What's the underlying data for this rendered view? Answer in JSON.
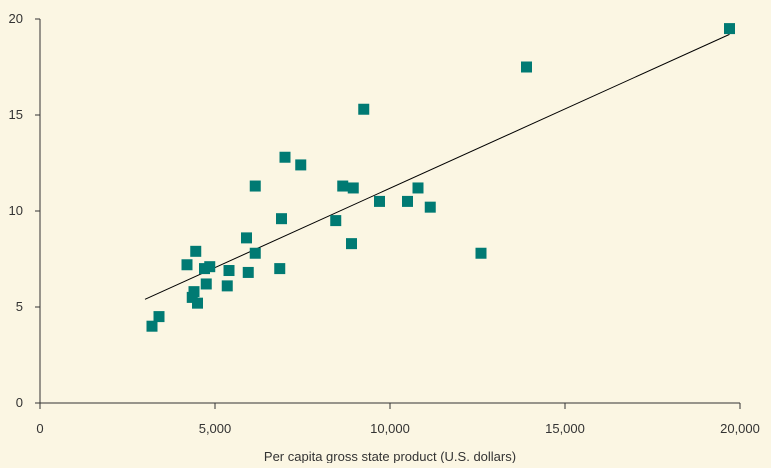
{
  "chart_data": {
    "type": "scatter",
    "title": "",
    "xlabel": "Per capita gross state product (U.S. dollars)",
    "ylabel": "",
    "xlim": [
      0,
      20000
    ],
    "ylim": [
      0,
      20
    ],
    "x_ticks": [
      0,
      5000,
      10000,
      15000,
      20000
    ],
    "x_tick_labels": [
      "0",
      "5,000",
      "10,000",
      "15,000",
      "20,000"
    ],
    "y_ticks": [
      0,
      5,
      10,
      15,
      20
    ],
    "y_tick_labels": [
      "0",
      "5",
      "10",
      "15",
      "20"
    ],
    "grid": false,
    "legend": "none",
    "marker_color": "#007a73",
    "line_color": "#000000",
    "background_color": "#fbf6e3",
    "points": [
      {
        "x": 3200,
        "y": 4.0
      },
      {
        "x": 3400,
        "y": 4.5
      },
      {
        "x": 4200,
        "y": 7.2
      },
      {
        "x": 4350,
        "y": 5.5
      },
      {
        "x": 4400,
        "y": 5.8
      },
      {
        "x": 4450,
        "y": 7.9
      },
      {
        "x": 4500,
        "y": 5.2
      },
      {
        "x": 4700,
        "y": 7.0
      },
      {
        "x": 4750,
        "y": 6.2
      },
      {
        "x": 4850,
        "y": 7.1
      },
      {
        "x": 5350,
        "y": 6.1
      },
      {
        "x": 5400,
        "y": 6.9
      },
      {
        "x": 5900,
        "y": 8.6
      },
      {
        "x": 5950,
        "y": 6.8
      },
      {
        "x": 6150,
        "y": 7.8
      },
      {
        "x": 6150,
        "y": 11.3
      },
      {
        "x": 6850,
        "y": 7.0
      },
      {
        "x": 6900,
        "y": 9.6
      },
      {
        "x": 7000,
        "y": 12.8
      },
      {
        "x": 7450,
        "y": 12.4
      },
      {
        "x": 8450,
        "y": 9.5
      },
      {
        "x": 8650,
        "y": 11.3
      },
      {
        "x": 8900,
        "y": 8.3
      },
      {
        "x": 8950,
        "y": 11.2
      },
      {
        "x": 9250,
        "y": 15.3
      },
      {
        "x": 9700,
        "y": 10.5
      },
      {
        "x": 10500,
        "y": 10.5
      },
      {
        "x": 10800,
        "y": 11.2
      },
      {
        "x": 11150,
        "y": 10.2
      },
      {
        "x": 12600,
        "y": 7.8
      },
      {
        "x": 13900,
        "y": 17.5
      },
      {
        "x": 19700,
        "y": 19.5
      }
    ],
    "trend_line": {
      "x": [
        3000,
        19700
      ],
      "y": [
        5.4,
        19.2
      ]
    }
  }
}
